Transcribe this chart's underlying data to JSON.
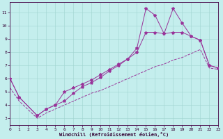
{
  "background_color": "#c4eeed",
  "grid_color": "#a0d4d0",
  "line_color": "#993399",
  "xlabel": "Windchill (Refroidissement éolien,°C)",
  "xlim": [
    0,
    23
  ],
  "ylim": [
    2.5,
    11.8
  ],
  "xticks": [
    0,
    1,
    2,
    3,
    4,
    5,
    6,
    7,
    8,
    9,
    10,
    11,
    12,
    13,
    14,
    15,
    16,
    17,
    18,
    19,
    20,
    21,
    22,
    23
  ],
  "yticks": [
    3,
    4,
    5,
    6,
    7,
    8,
    9,
    10,
    11
  ],
  "line1_x": [
    0,
    1,
    3,
    4,
    5,
    6,
    7,
    8,
    9,
    10,
    11,
    12,
    13,
    14,
    15,
    16,
    17,
    18,
    19,
    20,
    21,
    22,
    23
  ],
  "line1_y": [
    6.0,
    4.6,
    3.2,
    3.7,
    4.0,
    4.3,
    4.9,
    5.4,
    5.7,
    6.1,
    6.6,
    7.0,
    7.5,
    8.3,
    11.3,
    10.8,
    9.4,
    11.3,
    10.2,
    9.2,
    8.9,
    7.0,
    6.8
  ],
  "line2_x": [
    0,
    1,
    3,
    4,
    5,
    6,
    7,
    8,
    9,
    10,
    11,
    12,
    13,
    14,
    15,
    16,
    17,
    18,
    19,
    20,
    21,
    22,
    23
  ],
  "line2_y": [
    6.0,
    4.6,
    3.2,
    3.7,
    4.0,
    5.0,
    5.3,
    5.6,
    5.9,
    6.3,
    6.7,
    7.1,
    7.5,
    8.0,
    9.5,
    9.5,
    9.4,
    9.5,
    9.5,
    9.2,
    8.9,
    7.0,
    6.8
  ],
  "line3_x": [
    0,
    1,
    3,
    4,
    5,
    6,
    7,
    8,
    9,
    10,
    11,
    12,
    13,
    14,
    15,
    16,
    17,
    18,
    19,
    20,
    21,
    22,
    23
  ],
  "line3_y": [
    5.3,
    4.3,
    3.0,
    3.4,
    3.7,
    4.0,
    4.3,
    4.6,
    4.9,
    5.1,
    5.4,
    5.7,
    6.0,
    6.3,
    6.6,
    6.9,
    7.1,
    7.4,
    7.6,
    7.9,
    8.2,
    6.8,
    6.7
  ],
  "marker_size": 3.0,
  "linewidth": 0.7,
  "tick_fontsize": 4.5,
  "xlabel_fontsize": 5.0
}
